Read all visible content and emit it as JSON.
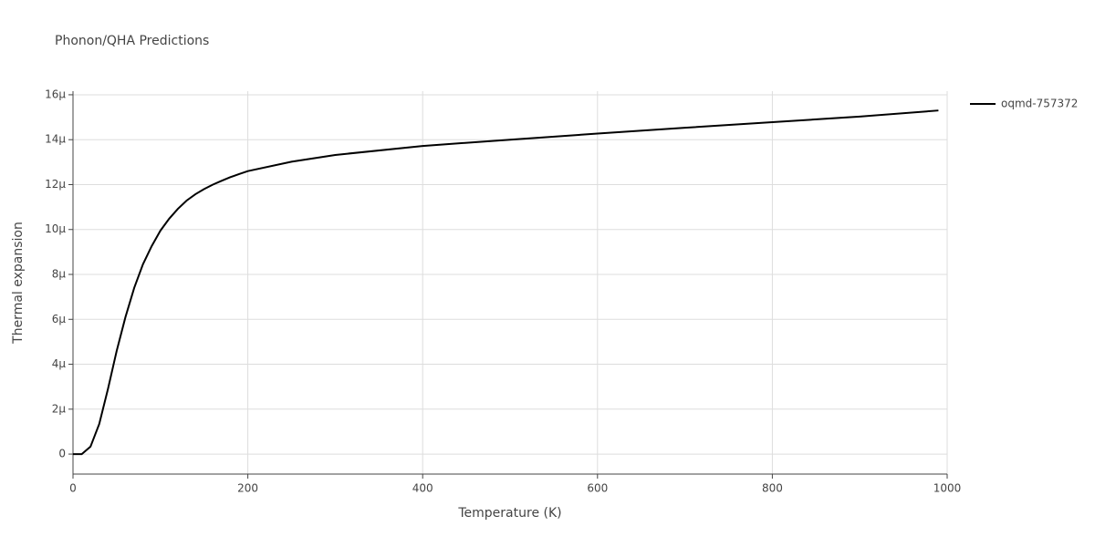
{
  "chart_data": {
    "type": "line",
    "title": "Phonon/QHA Predictions",
    "x_label": "Temperature (K)",
    "y_label": "Thermal expansion",
    "x": [
      0,
      10,
      20,
      30,
      40,
      50,
      60,
      70,
      80,
      90,
      100,
      110,
      120,
      130,
      140,
      150,
      160,
      170,
      180,
      190,
      200,
      250,
      300,
      400,
      500,
      600,
      700,
      800,
      900,
      990
    ],
    "series": [
      {
        "name": "oqmd-757372",
        "color": "#000000",
        "values": [
          0,
          0,
          3.3e-07,
          1.34e-06,
          2.9e-06,
          4.6e-06,
          6.1e-06,
          7.4e-06,
          8.45e-06,
          9.26e-06,
          9.95e-06,
          1.048e-05,
          1.092e-05,
          1.129e-05,
          1.157e-05,
          1.18e-05,
          1.2e-05,
          1.217e-05,
          1.233e-05,
          1.247e-05,
          1.26e-05,
          1.302e-05,
          1.332e-05,
          1.372e-05,
          1.4e-05,
          1.427e-05,
          1.453e-05,
          1.478e-05,
          1.503e-05,
          1.53e-05
        ]
      }
    ],
    "xlim": [
      0,
      1000
    ],
    "xticks": [
      0,
      200,
      400,
      600,
      800,
      1000
    ],
    "ylim": [
      -8.9e-07,
      1.616e-05
    ],
    "yticks": [
      0,
      {
        "value": 2e-06,
        "label": "2µ"
      },
      {
        "value": 4e-06,
        "label": "4µ"
      },
      {
        "value": 6e-06,
        "label": "6µ"
      },
      {
        "value": 8e-06,
        "label": "8µ"
      },
      {
        "value": 1e-05,
        "label": "10µ"
      },
      {
        "value": 1.2e-05,
        "label": "12µ"
      },
      {
        "value": 1.4e-05,
        "label": "14µ"
      },
      {
        "value": 1.6e-05,
        "label": "16µ"
      }
    ],
    "grid": true,
    "legend": "right"
  }
}
